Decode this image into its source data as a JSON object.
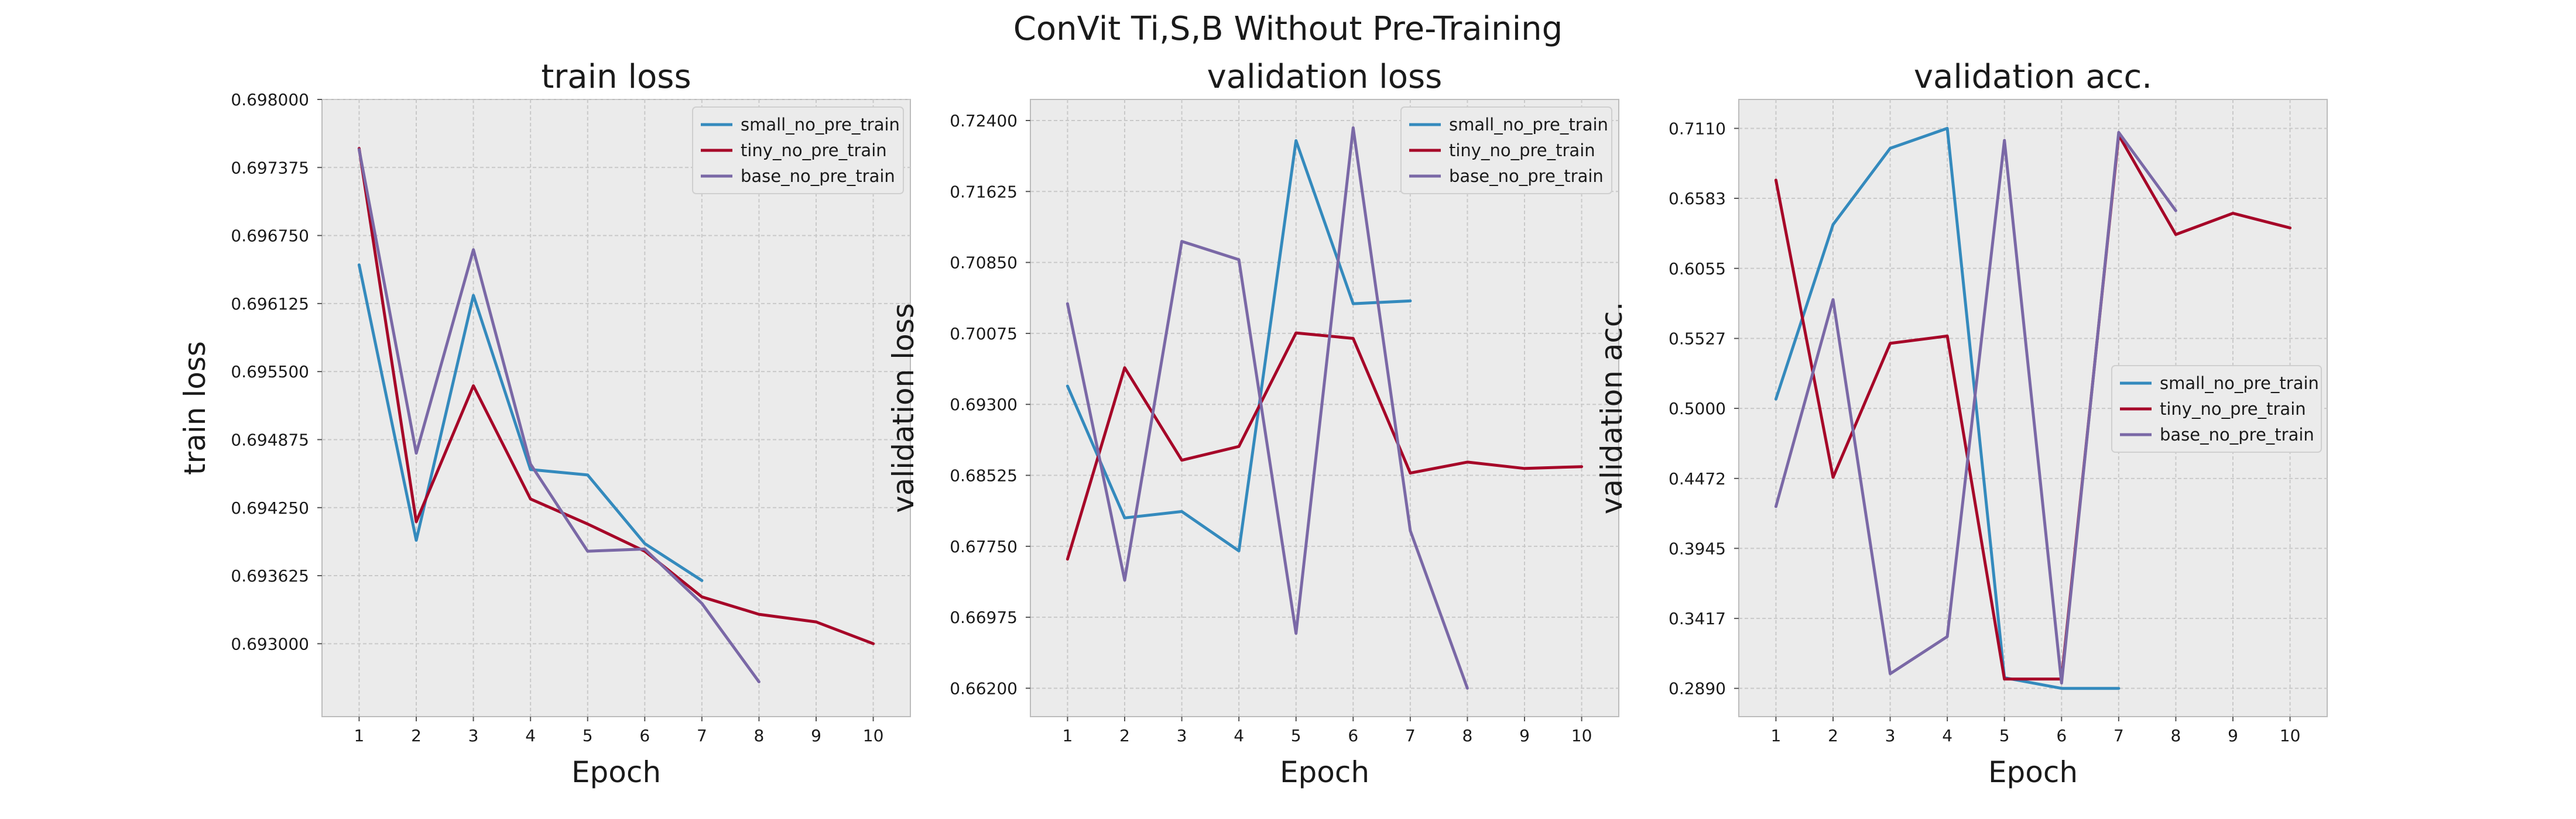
{
  "figure_title": "ConVit Ti,S,B Without Pre-Training",
  "colors": {
    "small_no_pre_train": "#348abd",
    "tiny_no_pre_train": "#a60628",
    "base_no_pre_train": "#7a68a6"
  },
  "chart_data": [
    {
      "type": "line",
      "title": "train loss",
      "xlabel": "Epoch",
      "ylabel": "train loss",
      "x_ticks": [
        1,
        2,
        3,
        4,
        5,
        6,
        7,
        8,
        9,
        10
      ],
      "y_ticks": [
        "0.693000",
        "0.693625",
        "0.694250",
        "0.694875",
        "0.695500",
        "0.696125",
        "0.696750",
        "0.697375",
        "0.698000"
      ],
      "xlim": [
        0.35,
        10.65
      ],
      "ylim": [
        0.69233,
        0.698
      ],
      "grid": true,
      "legend_position": "upper right",
      "series": [
        {
          "name": "small_no_pre_train",
          "x": [
            1,
            2,
            3,
            4,
            5,
            6,
            7
          ],
          "values": [
            0.69648,
            0.69395,
            0.6962,
            0.6946,
            0.69455,
            0.69392,
            0.69358
          ]
        },
        {
          "name": "tiny_no_pre_train",
          "x": [
            1,
            2,
            3,
            4,
            5,
            6,
            7,
            8,
            9,
            10
          ],
          "values": [
            0.69755,
            0.69412,
            0.69537,
            0.69433,
            0.6941,
            0.69385,
            0.69343,
            0.69327,
            0.6932,
            0.693
          ]
        },
        {
          "name": "base_no_pre_train",
          "x": [
            1,
            2,
            3,
            4,
            5,
            6,
            7,
            8
          ],
          "values": [
            0.69754,
            0.69475,
            0.69662,
            0.69465,
            0.69385,
            0.69387,
            0.69337,
            0.69265
          ]
        }
      ]
    },
    {
      "type": "line",
      "title": "validation loss",
      "xlabel": "Epoch",
      "ylabel": "validation loss",
      "x_ticks": [
        1,
        2,
        3,
        4,
        5,
        6,
        7,
        8,
        9,
        10
      ],
      "y_ticks": [
        "0.66200",
        "0.66975",
        "0.67750",
        "0.68525",
        "0.69300",
        "0.70075",
        "0.70850",
        "0.71625",
        "0.72400"
      ],
      "xlim": [
        0.35,
        10.65
      ],
      "ylim": [
        0.6589,
        0.7263
      ],
      "grid": true,
      "legend_position": "upper right",
      "series": [
        {
          "name": "small_no_pre_train",
          "x": [
            1,
            2,
            3,
            4,
            5,
            6,
            7
          ],
          "values": [
            0.695,
            0.6806,
            0.6813,
            0.677,
            0.7218,
            0.704,
            0.7043
          ]
        },
        {
          "name": "tiny_no_pre_train",
          "x": [
            1,
            2,
            3,
            4,
            5,
            6,
            7,
            8,
            9,
            10
          ],
          "values": [
            0.6761,
            0.697,
            0.6869,
            0.6884,
            0.7008,
            0.7002,
            0.6855,
            0.6867,
            0.686,
            0.6862
          ]
        },
        {
          "name": "base_no_pre_train",
          "x": [
            1,
            2,
            3,
            4,
            5,
            6,
            7,
            8
          ],
          "values": [
            0.704,
            0.6738,
            0.7108,
            0.7088,
            0.668,
            0.7232,
            0.6792,
            0.662
          ]
        }
      ]
    },
    {
      "type": "line",
      "title": "validation acc.",
      "xlabel": "Epoch",
      "ylabel": "validation acc.",
      "x_ticks": [
        1,
        2,
        3,
        4,
        5,
        6,
        7,
        8,
        9,
        10
      ],
      "y_ticks": [
        "0.2890",
        "0.3417",
        "0.3945",
        "0.4472",
        "0.5000",
        "0.5527",
        "0.6055",
        "0.6583",
        "0.7110"
      ],
      "xlim": [
        0.35,
        10.65
      ],
      "ylim": [
        0.2677,
        0.7328
      ],
      "grid": true,
      "legend_position": "center right",
      "series": [
        {
          "name": "small_no_pre_train",
          "x": [
            1,
            2,
            3,
            4,
            5,
            6,
            7
          ],
          "values": [
            0.507,
            0.6385,
            0.696,
            0.711,
            0.297,
            0.289,
            0.289
          ]
        },
        {
          "name": "tiny_no_pre_train",
          "x": [
            1,
            2,
            3,
            4,
            5,
            6,
            7,
            8,
            9,
            10
          ],
          "values": [
            0.672,
            0.448,
            0.549,
            0.5545,
            0.296,
            0.296,
            0.706,
            0.631,
            0.647,
            0.636
          ]
        },
        {
          "name": "base_no_pre_train",
          "x": [
            1,
            2,
            3,
            4,
            5,
            6,
            7,
            8
          ],
          "values": [
            0.426,
            0.582,
            0.3,
            0.328,
            0.702,
            0.293,
            0.708,
            0.649
          ]
        }
      ]
    }
  ]
}
